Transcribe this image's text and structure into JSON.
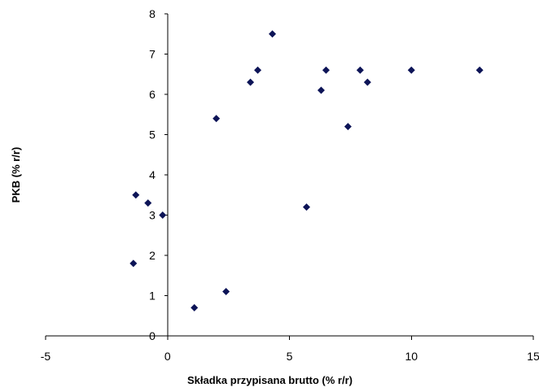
{
  "chart_data": {
    "type": "scatter",
    "title": "",
    "xlabel": "Składka przypisana brutto (% r/r)",
    "ylabel": "PKB (% r/r)",
    "xlim": [
      -5,
      15
    ],
    "ylim": [
      0,
      8
    ],
    "x_ticks": [
      -5,
      0,
      5,
      10,
      15
    ],
    "y_ticks": [
      0,
      1,
      2,
      3,
      4,
      5,
      6,
      7,
      8
    ],
    "grid": false,
    "legend": "none",
    "marker": "diamond",
    "marker_color": "#0d1457",
    "series": [
      {
        "points": [
          {
            "x": -1.4,
            "y": 1.8
          },
          {
            "x": -1.3,
            "y": 3.5
          },
          {
            "x": -0.8,
            "y": 3.3
          },
          {
            "x": -0.2,
            "y": 3.0
          },
          {
            "x": 1.1,
            "y": 0.7
          },
          {
            "x": 2.0,
            "y": 5.4
          },
          {
            "x": 2.4,
            "y": 1.1
          },
          {
            "x": 3.4,
            "y": 6.3
          },
          {
            "x": 3.7,
            "y": 6.6
          },
          {
            "x": 4.3,
            "y": 7.5
          },
          {
            "x": 5.7,
            "y": 3.2
          },
          {
            "x": 6.3,
            "y": 6.1
          },
          {
            "x": 6.5,
            "y": 6.6
          },
          {
            "x": 7.4,
            "y": 5.2
          },
          {
            "x": 7.9,
            "y": 6.6
          },
          {
            "x": 8.2,
            "y": 6.3
          },
          {
            "x": 10.0,
            "y": 6.6
          },
          {
            "x": 12.8,
            "y": 6.6
          }
        ]
      }
    ]
  }
}
